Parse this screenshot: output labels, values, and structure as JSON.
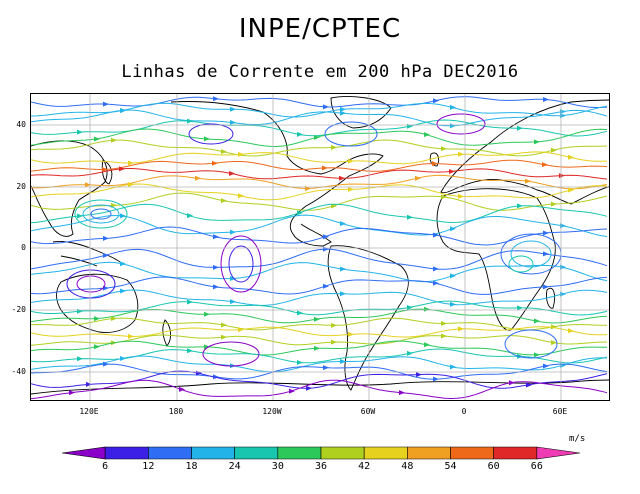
{
  "header": {
    "title": "INPE/CPTEC",
    "subtitle": "Linhas de Corrente em 200 hPa DEC2016"
  },
  "map": {
    "lat_ticks": [
      "40",
      "20",
      "0",
      "-20",
      "-40"
    ],
    "lon_ticks": [
      "120E",
      "180",
      "120W",
      "60W",
      "0",
      "60E"
    ]
  },
  "colorbar": {
    "units": "m/s",
    "ticks": [
      "6",
      "12",
      "18",
      "24",
      "30",
      "36",
      "42",
      "48",
      "54",
      "60",
      "66"
    ],
    "colors": [
      "#8a00c8",
      "#3c20e6",
      "#2f6df5",
      "#22b4e8",
      "#18c6b0",
      "#2dc85a",
      "#b0d020",
      "#e6d21e",
      "#f0a020",
      "#ee6a1a",
      "#e02828",
      "#f03cb4"
    ]
  }
}
